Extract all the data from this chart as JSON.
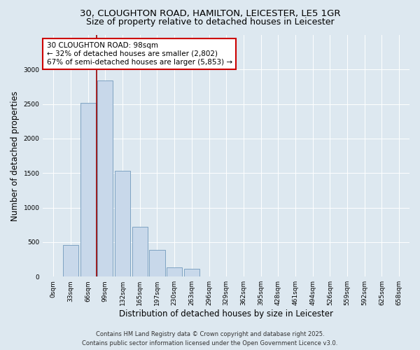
{
  "title_line1": "30, CLOUGHTON ROAD, HAMILTON, LEICESTER, LE5 1GR",
  "title_line2": "Size of property relative to detached houses in Leicester",
  "xlabel": "Distribution of detached houses by size in Leicester",
  "ylabel": "Number of detached properties",
  "bar_labels": [
    "0sqm",
    "33sqm",
    "66sqm",
    "99sqm",
    "132sqm",
    "165sqm",
    "197sqm",
    "230sqm",
    "263sqm",
    "296sqm",
    "329sqm",
    "362sqm",
    "395sqm",
    "428sqm",
    "461sqm",
    "494sqm",
    "526sqm",
    "559sqm",
    "592sqm",
    "625sqm",
    "658sqm"
  ],
  "bar_values": [
    0,
    460,
    2520,
    2840,
    1530,
    720,
    390,
    130,
    110,
    0,
    0,
    0,
    0,
    0,
    0,
    0,
    0,
    0,
    0,
    0,
    0
  ],
  "bar_color": "#c8d8ea",
  "bar_edge_color": "#7099bb",
  "vline_color": "#990000",
  "annotation_box_facecolor": "#ffffff",
  "annotation_box_edgecolor": "#cc0000",
  "annotation_text_line1": "30 CLOUGHTON ROAD: 98sqm",
  "annotation_text_line2": "← 32% of detached houses are smaller (2,802)",
  "annotation_text_line3": "67% of semi-detached houses are larger (5,853) →",
  "ylim": [
    0,
    3500
  ],
  "yticks": [
    0,
    500,
    1000,
    1500,
    2000,
    2500,
    3000
  ],
  "background_color": "#dde8f0",
  "plot_background": "#dde8f0",
  "footer_line1": "Contains HM Land Registry data © Crown copyright and database right 2025.",
  "footer_line2": "Contains public sector information licensed under the Open Government Licence v3.0.",
  "title_fontsize": 9.5,
  "subtitle_fontsize": 9,
  "axis_label_fontsize": 8.5,
  "tick_fontsize": 6.5,
  "annotation_fontsize": 7.5,
  "footer_fontsize": 6,
  "vline_x": 2.5
}
